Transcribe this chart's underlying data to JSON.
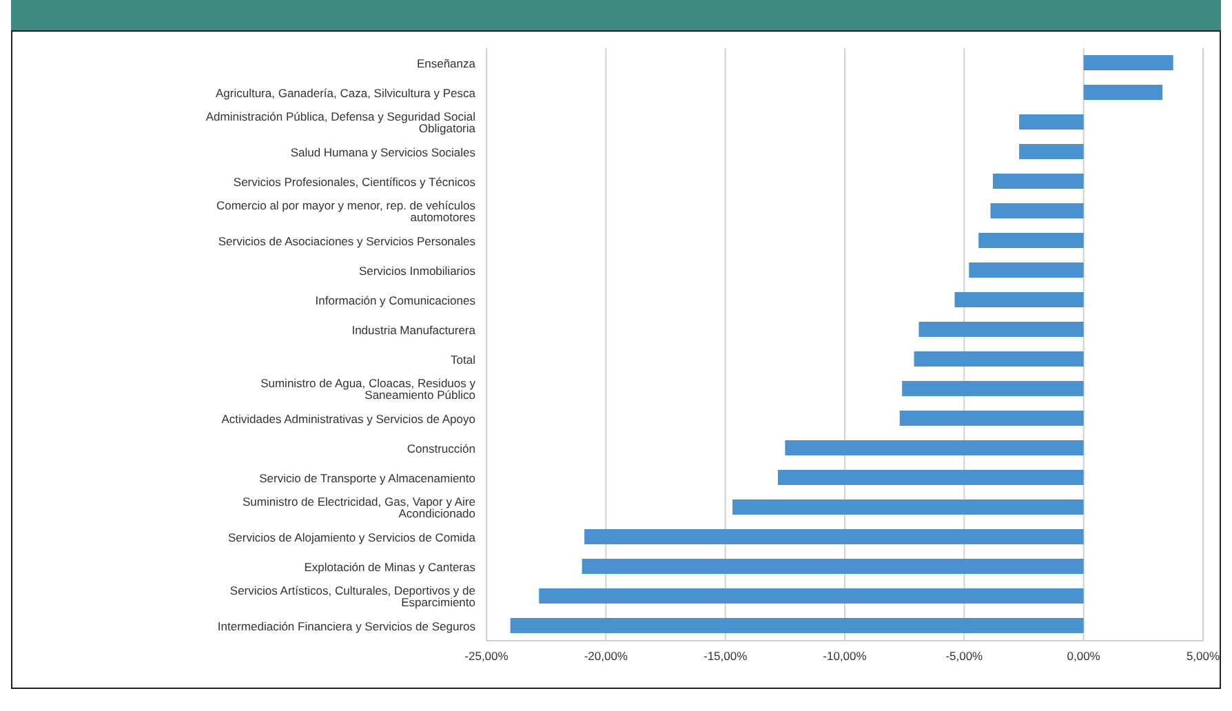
{
  "chart_data": {
    "type": "bar",
    "orientation": "horizontal",
    "categories": [
      "Enseñanza",
      "Agricultura, Ganadería, Caza, Silvicultura y Pesca",
      "Administración Pública, Defensa y Seguridad Social Obligatoria",
      "Salud Humana y Servicios Sociales",
      "Servicios Profesionales, Científicos y Técnicos",
      "Comercio al por mayor y menor, rep. de vehículos automotores",
      "Servicios de Asociaciones y Servicios Personales",
      "Servicios Inmobiliarios",
      "Información y Comunicaciones",
      "Industria Manufacturera",
      "Total",
      "Suministro de Agua, Cloacas, Residuos y Saneamiento Público",
      "Actividades Administrativas y Servicios de Apoyo",
      "Construcción",
      "Servicio de Transporte y Almacenamiento",
      "Suministro de Electricidad, Gas, Vapor y Aire Acondicionado",
      "Servicios de Alojamiento y Servicios de Comida",
      "Explotación de Minas y Canteras",
      "Servicios Artísticos, Culturales, Deportivos y de Esparcimiento",
      "Intermediación Financiera y Servicios de Seguros"
    ],
    "values": [
      3.75,
      3.3,
      -2.7,
      -2.7,
      -3.8,
      -3.9,
      -4.4,
      -4.8,
      -5.4,
      -6.9,
      -7.1,
      -7.6,
      -7.7,
      -12.5,
      -12.8,
      -14.7,
      -20.9,
      -21.0,
      -22.8,
      -24.0
    ],
    "color": "#4a92cf",
    "xlim": [
      -25,
      5
    ],
    "xticks": [
      {
        "value": -25,
        "label": "-25,00%"
      },
      {
        "value": -20,
        "label": "-20,00%"
      },
      {
        "value": -15,
        "label": "-15,00%"
      },
      {
        "value": -10,
        "label": "-10,00%"
      },
      {
        "value": -5,
        "label": "-5,00%"
      },
      {
        "value": 0,
        "label": "0,00%"
      },
      {
        "value": 5,
        "label": "5,00%"
      }
    ],
    "grid": "x"
  }
}
